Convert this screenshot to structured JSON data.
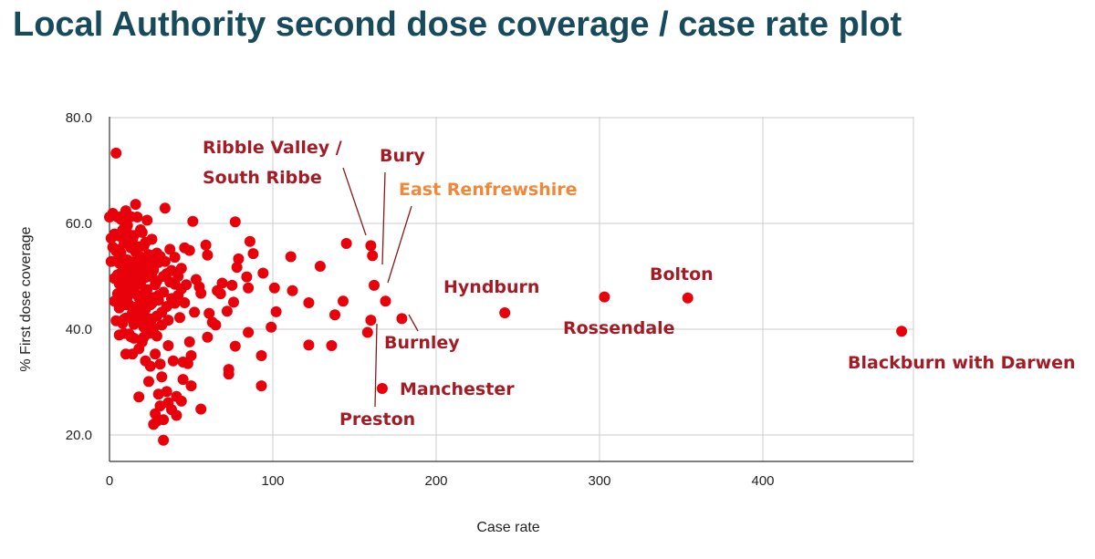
{
  "title": "Local Authority second dose coverage / case rate plot",
  "chart_data": {
    "type": "scatter",
    "title": "Local Authority second dose coverage / case rate plot",
    "xlabel": "Case rate",
    "ylabel": "% First dose coverage",
    "xlim": [
      0,
      490
    ],
    "ylim": [
      18,
      80
    ],
    "x_ticks": [
      "0",
      "100",
      "200",
      "300",
      "400"
    ],
    "y_ticks": [
      "20.0",
      "40.0",
      "60.0",
      "80.0"
    ],
    "grid": true,
    "marker_color": "#e8000b",
    "annotation_color": "#a31b24",
    "highlight_color": "#f0883a",
    "labelled_points": [
      {
        "name": "Blackburn with Darwen",
        "x": 485,
        "y": 39.6
      },
      {
        "name": "Bolton",
        "x": 354,
        "y": 45.9
      },
      {
        "name": "Rossendale",
        "x": 303,
        "y": 46.1
      },
      {
        "name": "Hyndburn",
        "x": 242,
        "y": 43.1
      },
      {
        "name": "Burnley",
        "x": 179,
        "y": 42.0
      },
      {
        "name": "Manchester",
        "x": 167,
        "y": 28.8
      },
      {
        "name": "Preston",
        "x": 160,
        "y": 41.7
      },
      {
        "name": "East Renfrewshire",
        "x": 169,
        "y": 45.3
      },
      {
        "name": "Bury",
        "x": 162,
        "y": 48.3
      },
      {
        "name": "Ribble Valley / South Ribbe",
        "x": 160,
        "y": 55.8
      }
    ],
    "points": [
      [
        485,
        39.6
      ],
      [
        354,
        45.9
      ],
      [
        303,
        46.1
      ],
      [
        242,
        43.1
      ],
      [
        179,
        42.0
      ],
      [
        167,
        28.8
      ],
      [
        160,
        41.7
      ],
      [
        169,
        45.3
      ],
      [
        162,
        48.3
      ],
      [
        160,
        55.8
      ],
      [
        161,
        53.9
      ],
      [
        158,
        39.4
      ],
      [
        145,
        56.2
      ],
      [
        143,
        45.3
      ],
      [
        138,
        42.7
      ],
      [
        136,
        36.9
      ],
      [
        129,
        51.9
      ],
      [
        122,
        45.0
      ],
      [
        122,
        37.0
      ],
      [
        112,
        47.3
      ],
      [
        111,
        53.7
      ],
      [
        102,
        43.3
      ],
      [
        101,
        47.8
      ],
      [
        99,
        40.4
      ],
      [
        94,
        50.6
      ],
      [
        93,
        35.0
      ],
      [
        93,
        29.3
      ],
      [
        88,
        54.3
      ],
      [
        86,
        56.6
      ],
      [
        85,
        47.8
      ],
      [
        84,
        49.9
      ],
      [
        85,
        39.4
      ],
      [
        79,
        53.3
      ],
      [
        78,
        51.7
      ],
      [
        77,
        60.3
      ],
      [
        77,
        36.8
      ],
      [
        76,
        45.1
      ],
      [
        75,
        48.3
      ],
      [
        73,
        31.5
      ],
      [
        73,
        32.4
      ],
      [
        72,
        43.4
      ],
      [
        69,
        48.7
      ],
      [
        68,
        46.7
      ],
      [
        66,
        47.3
      ],
      [
        65,
        40.8
      ],
      [
        63,
        41.3
      ],
      [
        61,
        43.0
      ],
      [
        60,
        38.5
      ],
      [
        60,
        54.0
      ],
      [
        59,
        55.9
      ],
      [
        56,
        24.9
      ],
      [
        56,
        46.8
      ],
      [
        55,
        48.0
      ],
      [
        53,
        49.4
      ],
      [
        52,
        43.2
      ],
      [
        51,
        60.4
      ],
      [
        50,
        35.0
      ],
      [
        50,
        29.3
      ],
      [
        49,
        37.6
      ],
      [
        49,
        54.9
      ],
      [
        48,
        33.5
      ],
      [
        47,
        48.4
      ],
      [
        46,
        55.4
      ],
      [
        46,
        45.0
      ],
      [
        45,
        33.8
      ],
      [
        45,
        30.5
      ],
      [
        44,
        26.4
      ],
      [
        44,
        51.5
      ],
      [
        43,
        42.2
      ],
      [
        42,
        46.4
      ],
      [
        41,
        27.3
      ],
      [
        41,
        23.7
      ],
      [
        40,
        53.6
      ],
      [
        40,
        48.5
      ],
      [
        39,
        34.0
      ],
      [
        38,
        24.8
      ],
      [
        38,
        51.1
      ],
      [
        37,
        55.1
      ],
      [
        36,
        36.9
      ],
      [
        36,
        26.1
      ],
      [
        35,
        44.3
      ],
      [
        35,
        28.2
      ],
      [
        34,
        62.9
      ],
      [
        33,
        22.9
      ],
      [
        33,
        19.0
      ],
      [
        33,
        50.0
      ],
      [
        32,
        43.2
      ],
      [
        32,
        31.0
      ],
      [
        31,
        25.5
      ],
      [
        31,
        33.4
      ],
      [
        30,
        27.7
      ],
      [
        30,
        52.6
      ],
      [
        30,
        46.4
      ],
      [
        29,
        38.7
      ],
      [
        29,
        22.6
      ],
      [
        29,
        54.4
      ],
      [
        28,
        35.3
      ],
      [
        28,
        24.0
      ],
      [
        27,
        22.0
      ],
      [
        27,
        46.0
      ],
      [
        26,
        49.9
      ],
      [
        26,
        41.9
      ],
      [
        26,
        57.0
      ],
      [
        25,
        33.0
      ],
      [
        25,
        44.6
      ],
      [
        24,
        54.1
      ],
      [
        24,
        30.1
      ],
      [
        24,
        39.2
      ],
      [
        23,
        50.7
      ],
      [
        23,
        60.6
      ],
      [
        22,
        34.0
      ],
      [
        22,
        47.4
      ],
      [
        22,
        43.8
      ],
      [
        21,
        55.7
      ],
      [
        21,
        40.4
      ],
      [
        21,
        38.5
      ],
      [
        20,
        52.6
      ],
      [
        20,
        45.0
      ],
      [
        19,
        58.8
      ],
      [
        19,
        42.9
      ],
      [
        18,
        48.7
      ],
      [
        18,
        27.2
      ],
      [
        18,
        36.3
      ],
      [
        17,
        51.1
      ],
      [
        17,
        61.2
      ],
      [
        17,
        44.3
      ],
      [
        16,
        63.6
      ],
      [
        16,
        46.7
      ],
      [
        16,
        54.6
      ],
      [
        15,
        40.9
      ],
      [
        15,
        49.5
      ],
      [
        15,
        57.7
      ],
      [
        14,
        43.1
      ],
      [
        14,
        52.2
      ],
      [
        14,
        35.3
      ],
      [
        13,
        61.3
      ],
      [
        13,
        47.2
      ],
      [
        13,
        55.4
      ],
      [
        12,
        39.1
      ],
      [
        12,
        50.5
      ],
      [
        12,
        44.6
      ],
      [
        11,
        53.1
      ],
      [
        11,
        59.6
      ],
      [
        11,
        46.1
      ],
      [
        10,
        35.3
      ],
      [
        10,
        48.7
      ],
      [
        10,
        62.4
      ],
      [
        10,
        42.1
      ],
      [
        9,
        56.3
      ],
      [
        9,
        51.6
      ],
      [
        9,
        39.2
      ],
      [
        8,
        45.3
      ],
      [
        8,
        58.7
      ],
      [
        8,
        49.2
      ],
      [
        8,
        41.1
      ],
      [
        7,
        54.4
      ],
      [
        7,
        60.8
      ],
      [
        7,
        47.0
      ],
      [
        6,
        38.9
      ],
      [
        6,
        52.5
      ],
      [
        6,
        44.0
      ],
      [
        6,
        57.6
      ],
      [
        5,
        50.3
      ],
      [
        5,
        61.2
      ],
      [
        5,
        46.7
      ],
      [
        4,
        54.8
      ],
      [
        4,
        41.6
      ],
      [
        4,
        73.3
      ],
      [
        3,
        58.0
      ],
      [
        3,
        49.6
      ],
      [
        3,
        45.3
      ],
      [
        2,
        55.5
      ],
      [
        2,
        61.9
      ],
      [
        1,
        57.2
      ],
      [
        1,
        52.8
      ],
      [
        0,
        61.2
      ],
      [
        25,
        51.5
      ],
      [
        22,
        49.8
      ],
      [
        19,
        53.7
      ],
      [
        27,
        51.2
      ],
      [
        29,
        49.1
      ],
      [
        31,
        53.8
      ],
      [
        18,
        46.0
      ],
      [
        20,
        50.2
      ],
      [
        23,
        47.5
      ],
      [
        16,
        49.2
      ],
      [
        14,
        48.0
      ],
      [
        21,
        52.0
      ],
      [
        24,
        45.8
      ],
      [
        26,
        53.3
      ],
      [
        28,
        48.4
      ],
      [
        12,
        47.6
      ],
      [
        10,
        51.9
      ],
      [
        17,
        53.0
      ],
      [
        19,
        48.5
      ],
      [
        15,
        52.7
      ],
      [
        13,
        50.1
      ],
      [
        11,
        49.0
      ],
      [
        9,
        47.2
      ],
      [
        8,
        52.9
      ],
      [
        7,
        50.6
      ],
      [
        6,
        48.6
      ],
      [
        5,
        53.1
      ],
      [
        22,
        56.4
      ],
      [
        20,
        58.3
      ],
      [
        18,
        55.6
      ],
      [
        14,
        57.0
      ],
      [
        12,
        55.9
      ],
      [
        11,
        58.2
      ],
      [
        9,
        59.1
      ],
      [
        8,
        61.4
      ],
      [
        6,
        55.1
      ],
      [
        24,
        42.0
      ],
      [
        22,
        40.3
      ],
      [
        18,
        41.6
      ],
      [
        16,
        43.5
      ],
      [
        13,
        42.3
      ],
      [
        10,
        44.6
      ],
      [
        9,
        41.9
      ],
      [
        26,
        44.9
      ],
      [
        30,
        45.5
      ],
      [
        33,
        47.0
      ],
      [
        35,
        50.5
      ],
      [
        38,
        45.8
      ],
      [
        40,
        44.9
      ],
      [
        42,
        50.0
      ],
      [
        44,
        47.6
      ],
      [
        37,
        48.9
      ],
      [
        34,
        52.8
      ],
      [
        32,
        40.8
      ],
      [
        29,
        42.5
      ],
      [
        27,
        40.2
      ],
      [
        36,
        41.7
      ],
      [
        15,
        38.3
      ],
      [
        13,
        38.6
      ],
      [
        20,
        37.6
      ]
    ]
  }
}
